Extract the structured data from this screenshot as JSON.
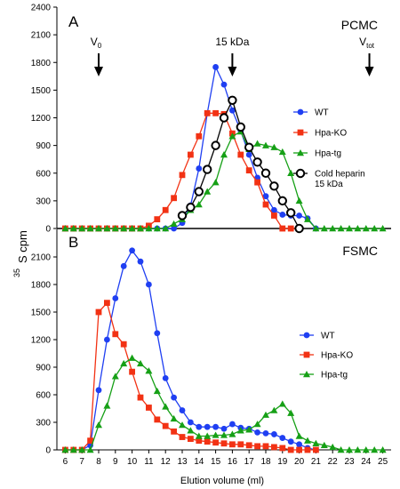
{
  "figure": {
    "y_title_sup": "35",
    "y_title_main": "S cpm",
    "x_title": "Elution volume (ml)"
  },
  "chart_data": [
    {
      "type": "line",
      "panel": "A",
      "title": "PCMC",
      "xlabel": "Elution volume (ml)",
      "ylabel": "35S cpm",
      "xlim": [
        5.5,
        25.5
      ],
      "ylim": [
        0,
        2400
      ],
      "yticks": [
        0,
        300,
        600,
        900,
        1200,
        1500,
        1800,
        2100,
        2400
      ],
      "grid": false,
      "legend": "right",
      "annotations": [
        {
          "label": "V",
          "sub": "0",
          "x": 8.0
        },
        {
          "label": "15 kDa",
          "sub": "",
          "x": 16.0
        },
        {
          "label": "V",
          "sub": "tot",
          "x": 24.2
        }
      ],
      "series": [
        {
          "name": "WT",
          "color": "#1f3ff2",
          "marker": "circle",
          "x": [
            6,
            6.5,
            7,
            7.5,
            8,
            8.5,
            9,
            9.5,
            10,
            10.5,
            11,
            11.5,
            12,
            12.5,
            13,
            13.5,
            14,
            14.5,
            15,
            15.5,
            16,
            16.5,
            17,
            17.5,
            18,
            18.5,
            19,
            19.5,
            20,
            20.5,
            21
          ],
          "y": [
            0,
            0,
            0,
            0,
            0,
            0,
            0,
            0,
            0,
            0,
            0,
            0,
            0,
            0,
            60,
            250,
            650,
            1250,
            1750,
            1560,
            1280,
            1060,
            800,
            550,
            350,
            200,
            150,
            140,
            140,
            110,
            0
          ]
        },
        {
          "name": "Hpa-KO",
          "color": "#f23214",
          "marker": "square",
          "x": [
            6,
            6.5,
            7,
            7.5,
            8,
            8.5,
            9,
            9.5,
            10,
            10.5,
            11,
            11.5,
            12,
            12.5,
            13,
            13.5,
            14,
            14.5,
            15,
            15.5,
            16,
            16.5,
            17,
            17.5,
            18,
            18.5,
            19,
            19.5,
            20
          ],
          "y": [
            0,
            0,
            0,
            0,
            0,
            0,
            0,
            0,
            0,
            0,
            30,
            100,
            200,
            330,
            580,
            800,
            1000,
            1250,
            1250,
            1240,
            1030,
            800,
            630,
            500,
            260,
            140,
            0,
            0,
            0
          ]
        },
        {
          "name": "Hpa-tg",
          "color": "#16a016",
          "marker": "triangle",
          "x": [
            6,
            6.5,
            7,
            7.5,
            8,
            8.5,
            9,
            9.5,
            10,
            10.5,
            11,
            11.5,
            12,
            12.5,
            13,
            13.5,
            14,
            14.5,
            15,
            15.5,
            16,
            16.5,
            17,
            17.5,
            18,
            18.5,
            19,
            19.5,
            20,
            20.5,
            21,
            21.5,
            22,
            22.5,
            23,
            23.5,
            24,
            24.5,
            25
          ],
          "y": [
            0,
            0,
            0,
            0,
            0,
            0,
            0,
            0,
            0,
            0,
            0,
            0,
            0,
            50,
            100,
            200,
            260,
            400,
            500,
            800,
            1000,
            1050,
            860,
            920,
            900,
            880,
            830,
            600,
            300,
            100,
            0,
            0,
            0,
            0,
            0,
            0,
            0,
            0,
            0
          ]
        },
        {
          "name": "Cold heparin 15 kDa",
          "color": "#000000",
          "marker": "open-circle",
          "x": [
            13,
            13.5,
            14,
            14.5,
            15,
            15.5,
            16,
            16.5,
            17,
            17.5,
            18,
            18.5,
            19,
            19.5,
            20
          ],
          "y": [
            140,
            230,
            400,
            640,
            900,
            1200,
            1390,
            1100,
            880,
            720,
            600,
            460,
            300,
            170,
            0
          ]
        }
      ]
    },
    {
      "type": "line",
      "panel": "B",
      "title": "FSMC",
      "xlabel": "Elution volume (ml)",
      "ylabel": "35S cpm",
      "xlim": [
        5.5,
        25.5
      ],
      "ylim": [
        0,
        2400
      ],
      "yticks": [
        0,
        300,
        600,
        900,
        1200,
        1500,
        1800,
        2100
      ],
      "xticks": [
        6,
        7,
        8,
        9,
        10,
        11,
        12,
        13,
        14,
        15,
        16,
        17,
        18,
        19,
        20,
        21,
        22,
        23,
        24,
        25
      ],
      "grid": false,
      "legend": "right",
      "series": [
        {
          "name": "WT",
          "color": "#1f3ff2",
          "marker": "circle",
          "x": [
            6,
            6.5,
            7,
            7.5,
            8,
            8.5,
            9,
            9.5,
            10,
            10.5,
            11,
            11.5,
            12,
            12.5,
            13,
            13.5,
            14,
            14.5,
            15,
            15.5,
            16,
            16.5,
            17,
            17.5,
            18,
            18.5,
            19,
            19.5,
            20,
            20.5,
            21
          ],
          "y": [
            0,
            0,
            0,
            50,
            650,
            1200,
            1650,
            2000,
            2170,
            2050,
            1800,
            1270,
            780,
            570,
            430,
            300,
            250,
            250,
            250,
            230,
            280,
            240,
            230,
            190,
            180,
            170,
            130,
            90,
            60,
            20,
            0
          ]
        },
        {
          "name": "Hpa-KO",
          "color": "#f23214",
          "marker": "square",
          "x": [
            6,
            6.5,
            7,
            7.5,
            8,
            8.5,
            9,
            9.5,
            10,
            10.5,
            11,
            11.5,
            12,
            12.5,
            13,
            13.5,
            14,
            14.5,
            15,
            15.5,
            16,
            16.5,
            17,
            17.5,
            18,
            18.5,
            19,
            19.5,
            20,
            20.5,
            21
          ],
          "y": [
            0,
            0,
            0,
            100,
            1500,
            1600,
            1260,
            1150,
            850,
            570,
            460,
            330,
            260,
            200,
            140,
            120,
            100,
            90,
            80,
            70,
            60,
            60,
            50,
            40,
            40,
            30,
            20,
            0,
            0,
            0,
            0
          ]
        },
        {
          "name": "Hpa-tg",
          "color": "#16a016",
          "marker": "triangle",
          "x": [
            6,
            6.5,
            7,
            7.5,
            8,
            8.5,
            9,
            9.5,
            10,
            10.5,
            11,
            11.5,
            12,
            12.5,
            13,
            13.5,
            14,
            14.5,
            15,
            15.5,
            16,
            16.5,
            17,
            17.5,
            18,
            18.5,
            19,
            19.5,
            20,
            20.5,
            21,
            21.5,
            22,
            22.5,
            23,
            23.5,
            24,
            24.5,
            25
          ],
          "y": [
            0,
            0,
            0,
            0,
            270,
            480,
            800,
            940,
            1000,
            940,
            860,
            640,
            470,
            340,
            270,
            210,
            150,
            150,
            160,
            160,
            170,
            210,
            220,
            280,
            380,
            430,
            500,
            400,
            150,
            100,
            70,
            50,
            30,
            0,
            0,
            0,
            0,
            0,
            0
          ]
        }
      ]
    }
  ]
}
